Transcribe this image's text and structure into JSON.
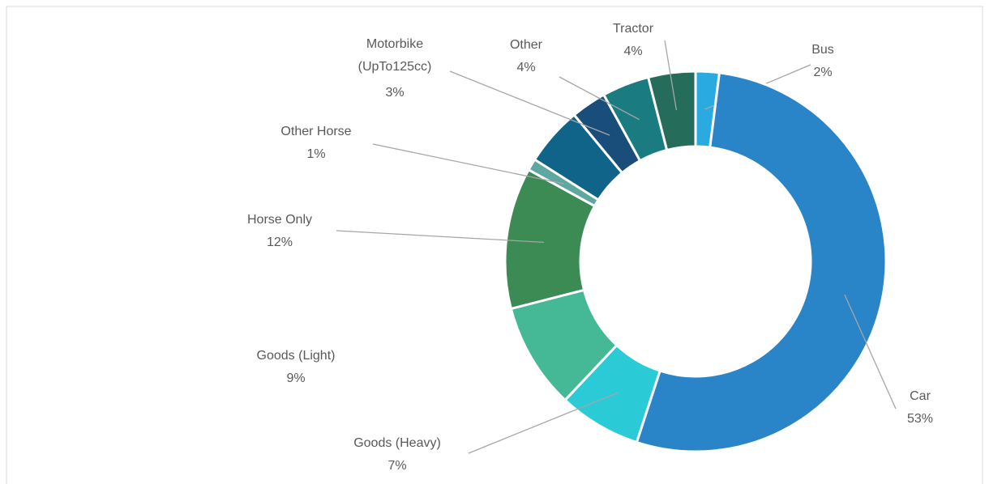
{
  "chart_data": {
    "type": "donut",
    "categories": [
      "Bus",
      "Car",
      "Goods (Heavy)",
      "Goods (Light)",
      "Horse Only",
      "Other Horse",
      null,
      "Motorbike (UpTo125cc)",
      "Other",
      "Tractor"
    ],
    "values": [
      2,
      53,
      7,
      9,
      12,
      1,
      5,
      3,
      4,
      4
    ],
    "value_labels": [
      "2%",
      "53%",
      "7%",
      "9%",
      "12%",
      "1%",
      null,
      "3%",
      "4%",
      "4%"
    ],
    "colors": [
      "#29abe2",
      "#2a84c8",
      "#2acbd6",
      "#45b995",
      "#3c8a54",
      "#5fa8a0",
      "#10648a",
      "#1a4e7a",
      "#1a7b80",
      "#256d5a"
    ]
  }
}
